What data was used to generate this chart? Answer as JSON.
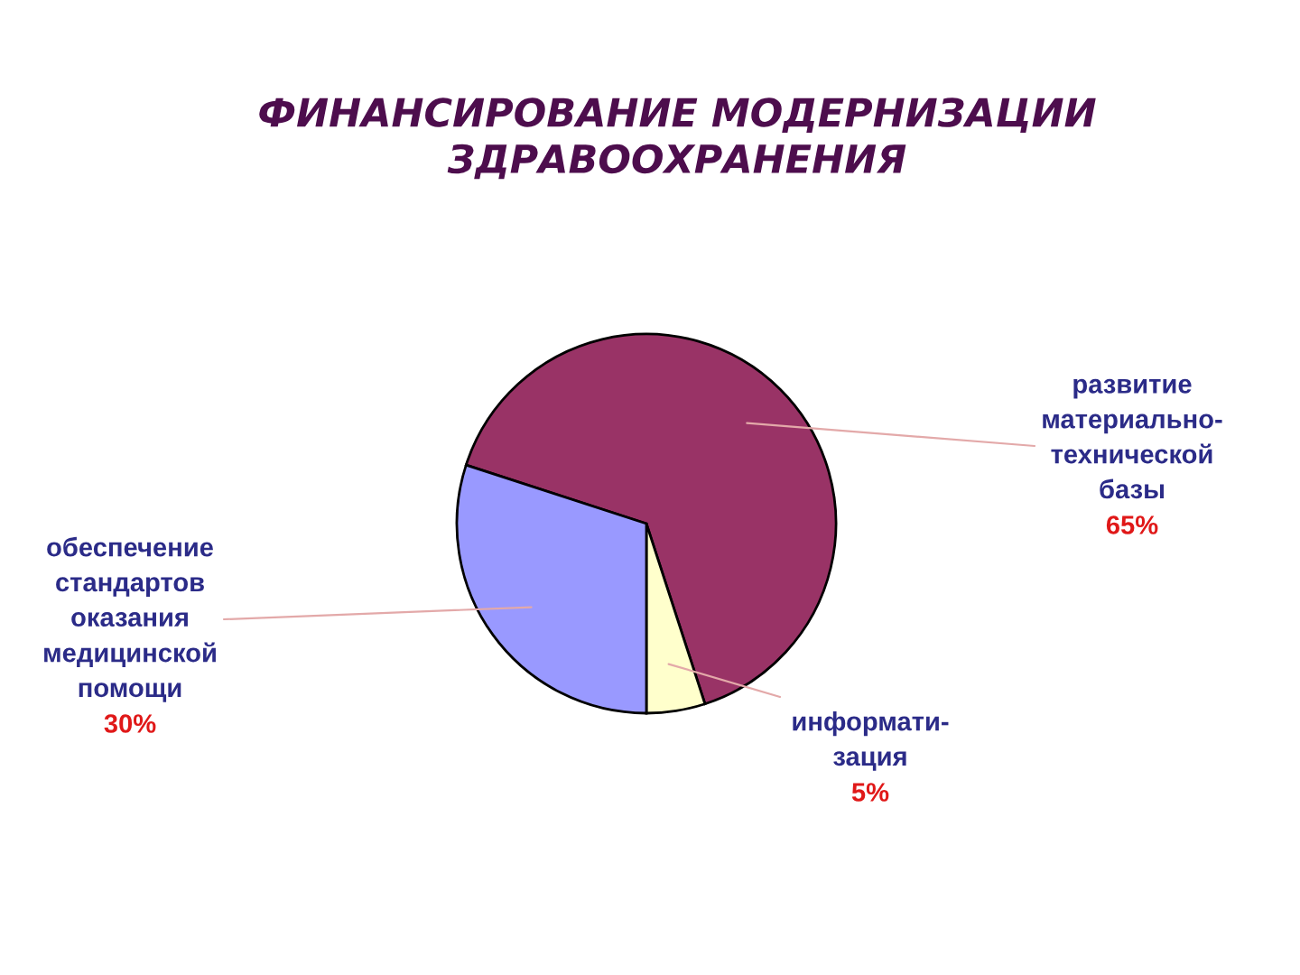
{
  "chart_data": {
    "type": "pie",
    "title": "ФИНАНСИРОВАНИЕ МОДЕРНИЗАЦИИ\nЗДРАВООХРАНЕНИЯ",
    "categories": [
      "развитие\nматериально-\nтехнической\nбазы",
      "информати-\nзация",
      "обеспечение\nстандартов\nоказания\nмедицинской\nпомощи"
    ],
    "values": [
      65,
      5,
      30
    ],
    "colors": [
      "#993366",
      "#ffffcc",
      "#9999ff"
    ],
    "value_labels": [
      "65%",
      "5%",
      "30%"
    ]
  }
}
